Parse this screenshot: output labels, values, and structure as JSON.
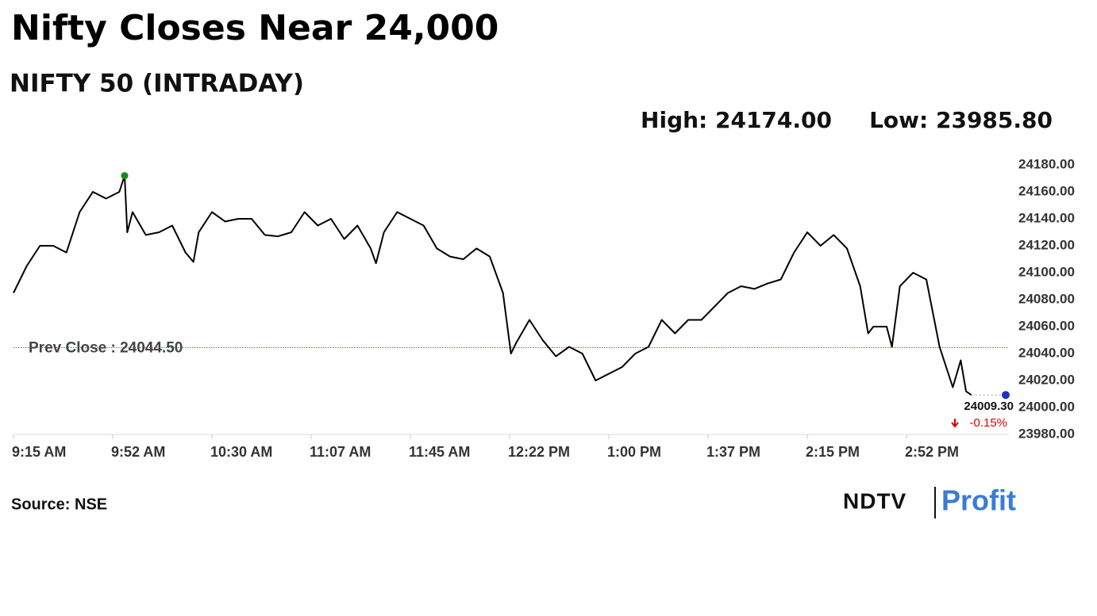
{
  "chart_data": {
    "type": "line",
    "title": "Nifty Closes Near 24,000",
    "subtitle": "NIFTY 50 (INTRADAY)",
    "high_label": "High: 24174.00",
    "low_label": "Low: 23985.80",
    "source": "Source: NSE",
    "logo": [
      "NDTV",
      "Profit"
    ],
    "color": "#000000",
    "high_color": "#1a8a1a",
    "last_color": "#1f2fbf",
    "prev_close": {
      "value": 24044.5,
      "label": "Prev Close : 24044.50",
      "color": "#c0392b"
    },
    "last": {
      "x": 375,
      "value": 24009.3,
      "label": "24009.30",
      "change": -0.15,
      "change_label": "-0.15%"
    },
    "x": [
      0,
      5,
      10,
      15,
      20,
      25,
      30,
      35,
      40,
      42,
      43,
      45,
      50,
      55,
      60,
      65,
      68,
      70,
      75,
      80,
      85,
      90,
      95,
      100,
      105,
      110,
      115,
      120,
      125,
      130,
      135,
      137,
      140,
      145,
      150,
      155,
      160,
      165,
      170,
      175,
      180,
      185,
      188,
      190,
      195,
      200,
      205,
      210,
      215,
      220,
      225,
      230,
      235,
      240,
      245,
      250,
      255,
      260,
      265,
      270,
      275,
      280,
      285,
      290,
      295,
      300,
      305,
      310,
      315,
      320,
      323,
      325,
      330,
      332,
      335,
      340,
      345,
      350,
      355,
      358,
      360,
      362
    ],
    "series": [
      {
        "name": "NIFTY 50",
        "values": [
          24085,
          24105,
          24120,
          24120,
          24115,
          24145,
          24160,
          24155,
          24160,
          24172,
          24130,
          24145,
          24128,
          24130,
          24135,
          24115,
          24108,
          24130,
          24145,
          24138,
          24140,
          24140,
          24128,
          24127,
          24130,
          24145,
          24135,
          24140,
          24125,
          24135,
          24118,
          24107,
          24130,
          24145,
          24140,
          24135,
          24118,
          24112,
          24110,
          24118,
          24112,
          24085,
          24040,
          24048,
          24065,
          24050,
          24038,
          24045,
          24040,
          24020,
          24025,
          24030,
          24040,
          24045,
          24065,
          24055,
          24065,
          24065,
          24075,
          24085,
          24090,
          24088,
          24092,
          24095,
          24115,
          24130,
          24120,
          24128,
          24118,
          24090,
          24055,
          24060,
          24060,
          24045,
          24090,
          24100,
          24095,
          24045,
          24015,
          24035,
          24012,
          24009.3
        ]
      }
    ],
    "xlim": [
      0,
      375
    ],
    "xticks": [
      {
        "value": 0,
        "label": "9:15 AM"
      },
      {
        "value": 37.5,
        "label": "9:52 AM"
      },
      {
        "value": 75,
        "label": "10:30 AM"
      },
      {
        "value": 112.5,
        "label": "11:07 AM"
      },
      {
        "value": 150,
        "label": "11:45 AM"
      },
      {
        "value": 187.5,
        "label": "12:22 PM"
      },
      {
        "value": 225,
        "label": "1:00 PM"
      },
      {
        "value": 262.5,
        "label": "1:37 PM"
      },
      {
        "value": 300,
        "label": "2:15 PM"
      },
      {
        "value": 337.5,
        "label": "2:52 PM"
      }
    ],
    "ylim": [
      23980,
      24180
    ],
    "yticks": [
      {
        "value": 23980,
        "label": "23980.00"
      },
      {
        "value": 24000,
        "label": "24000.00"
      },
      {
        "value": 24020,
        "label": "24020.00"
      },
      {
        "value": 24040,
        "label": "24040.00"
      },
      {
        "value": 24060,
        "label": "24060.00"
      },
      {
        "value": 24080,
        "label": "24080.00"
      },
      {
        "value": 24100,
        "label": "24100.00"
      },
      {
        "value": 24120,
        "label": "24120.00"
      },
      {
        "value": 24140,
        "label": "24140.00"
      },
      {
        "value": 24160,
        "label": "24160.00"
      },
      {
        "value": 24180,
        "label": "24180.00"
      }
    ]
  }
}
